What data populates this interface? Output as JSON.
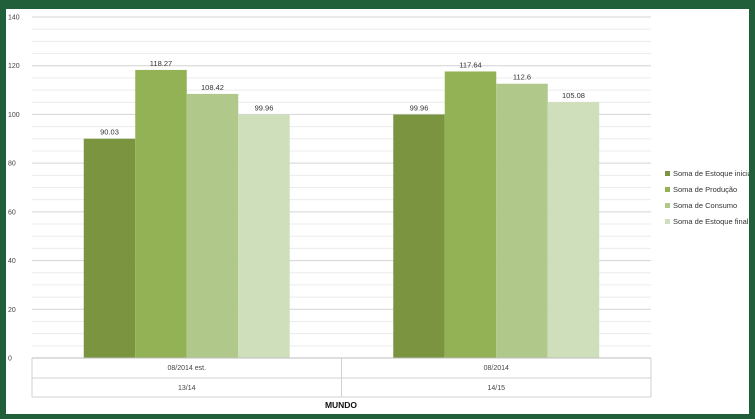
{
  "chart_data": {
    "type": "bar",
    "ylim": [
      0,
      140
    ],
    "yticks": [
      0,
      20,
      40,
      60,
      80,
      100,
      120,
      140
    ],
    "minor_grid_step": 5,
    "grid": true,
    "legend_position": "right",
    "xlabel": "MUNDO",
    "groups": [
      {
        "label": "08/2014 est.",
        "sublabel": "13/14"
      },
      {
        "label": "08/2014",
        "sublabel": "14/15"
      }
    ],
    "series": [
      {
        "name": "Soma de Estoque inicial",
        "color": "#7a9440",
        "values": [
          90.03,
          99.96
        ]
      },
      {
        "name": "Soma de Produção",
        "color": "#93b155",
        "values": [
          118.27,
          117.64
        ]
      },
      {
        "name": "Soma de Consumo",
        "color": "#b0c98a",
        "values": [
          108.42,
          112.6
        ]
      },
      {
        "name": "Soma de Estoque final",
        "color": "#d0dfbb",
        "values": [
          99.96,
          105.08
        ]
      }
    ]
  }
}
